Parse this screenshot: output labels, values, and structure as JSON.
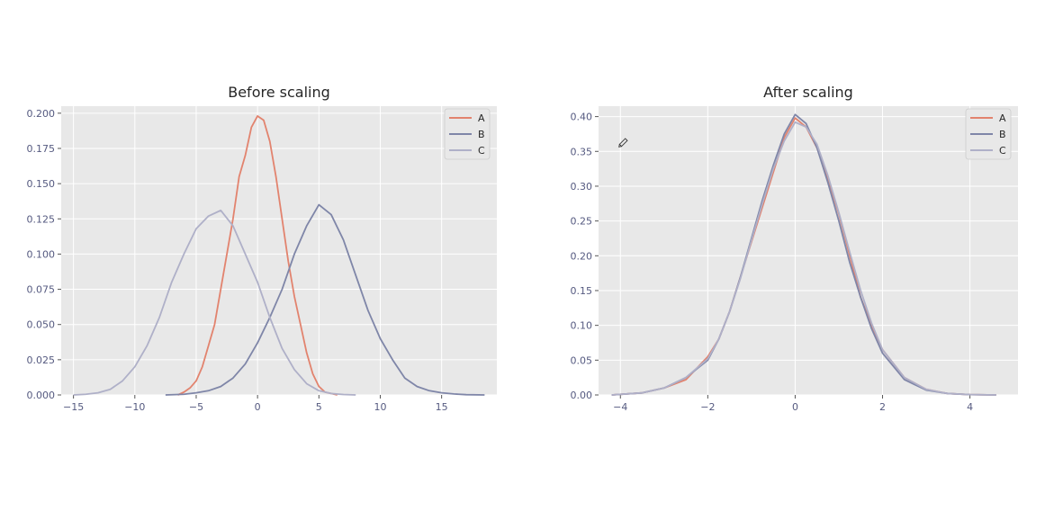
{
  "chart_data": [
    {
      "type": "line",
      "title": "Before scaling",
      "xlabel": "",
      "ylabel": "",
      "xlim": [
        -16,
        19.5
      ],
      "ylim": [
        0,
        0.205
      ],
      "xticks": [
        -15,
        -10,
        -5,
        0,
        5,
        10,
        15,
        20
      ],
      "yticks": [
        0.0,
        0.025,
        0.05,
        0.075,
        0.1,
        0.125,
        0.15,
        0.175,
        0.2
      ],
      "ytick_labels": [
        "0.000",
        "0.025",
        "0.050",
        "0.075",
        "0.100",
        "0.125",
        "0.150",
        "0.175",
        "0.200"
      ],
      "grid": true,
      "legend_position": "top-right",
      "series": [
        {
          "name": "A",
          "color": "#e2836e",
          "x": [
            -6.5,
            -6.0,
            -5.5,
            -5.0,
            -4.5,
            -4.0,
            -3.5,
            -3.0,
            -2.5,
            -2.0,
            -1.5,
            -1.0,
            -0.5,
            0.0,
            0.5,
            1.0,
            1.5,
            2.0,
            2.5,
            3.0,
            3.5,
            4.0,
            4.5,
            5.0,
            5.5,
            6.0,
            6.5
          ],
          "y": [
            0.0,
            0.002,
            0.005,
            0.01,
            0.02,
            0.035,
            0.05,
            0.075,
            0.1,
            0.125,
            0.155,
            0.17,
            0.19,
            0.198,
            0.195,
            0.18,
            0.155,
            0.125,
            0.095,
            0.07,
            0.05,
            0.03,
            0.015,
            0.006,
            0.002,
            0.001,
            0.0
          ]
        },
        {
          "name": "B",
          "color": "#7f86a8",
          "x": [
            -7.5,
            -6.0,
            -5.0,
            -4.0,
            -3.0,
            -2.0,
            -1.0,
            0.0,
            1.0,
            2.0,
            3.0,
            4.0,
            5.0,
            6.0,
            7.0,
            8.0,
            9.0,
            10.0,
            11.0,
            12.0,
            13.0,
            14.0,
            15.0,
            16.0,
            17.0,
            18.5
          ],
          "y": [
            0.0,
            0.0005,
            0.0015,
            0.003,
            0.006,
            0.012,
            0.022,
            0.037,
            0.055,
            0.075,
            0.1,
            0.12,
            0.135,
            0.128,
            0.11,
            0.085,
            0.06,
            0.04,
            0.025,
            0.012,
            0.006,
            0.003,
            0.0015,
            0.0007,
            0.0002,
            0.0
          ]
        },
        {
          "name": "C",
          "color": "#afb0c8",
          "x": [
            -15.0,
            -14.0,
            -13.0,
            -12.0,
            -11.0,
            -10.0,
            -9.0,
            -8.0,
            -7.0,
            -6.0,
            -5.0,
            -4.0,
            -3.0,
            -2.0,
            -1.0,
            0.0,
            1.0,
            2.0,
            3.0,
            4.0,
            5.0,
            6.0,
            7.0,
            8.0
          ],
          "y": [
            0.0,
            0.0005,
            0.0015,
            0.004,
            0.01,
            0.02,
            0.035,
            0.055,
            0.08,
            0.1,
            0.118,
            0.127,
            0.131,
            0.12,
            0.1,
            0.08,
            0.055,
            0.033,
            0.018,
            0.008,
            0.003,
            0.001,
            0.0003,
            0.0
          ]
        }
      ]
    },
    {
      "type": "line",
      "title": "After scaling",
      "xlabel": "",
      "ylabel": "",
      "xlim": [
        -4.5,
        5.1
      ],
      "ylim": [
        0,
        0.415
      ],
      "xticks": [
        -4,
        -2,
        0,
        2,
        4
      ],
      "yticks": [
        0.0,
        0.05,
        0.1,
        0.15,
        0.2,
        0.25,
        0.3,
        0.35,
        0.4
      ],
      "ytick_labels": [
        "0.00",
        "0.05",
        "0.10",
        "0.15",
        "0.20",
        "0.25",
        "0.30",
        "0.35",
        "0.40"
      ],
      "grid": true,
      "legend_position": "top-right",
      "series": [
        {
          "name": "A",
          "color": "#e2836e",
          "x": [
            -4.2,
            -3.5,
            -3.0,
            -2.5,
            -2.0,
            -1.75,
            -1.5,
            -1.25,
            -1.0,
            -0.75,
            -0.5,
            -0.25,
            0.0,
            0.25,
            0.5,
            0.75,
            1.0,
            1.25,
            1.5,
            1.75,
            2.0,
            2.5,
            3.0,
            3.5,
            4.0,
            4.6
          ],
          "y": [
            0.0,
            0.003,
            0.01,
            0.022,
            0.055,
            0.08,
            0.12,
            0.17,
            0.22,
            0.27,
            0.32,
            0.37,
            0.398,
            0.385,
            0.355,
            0.31,
            0.26,
            0.2,
            0.14,
            0.1,
            0.065,
            0.025,
            0.008,
            0.002,
            0.0005,
            0.0
          ]
        },
        {
          "name": "B",
          "color": "#7f86a8",
          "x": [
            -4.2,
            -3.5,
            -3.0,
            -2.5,
            -2.0,
            -1.75,
            -1.5,
            -1.25,
            -1.0,
            -0.75,
            -0.5,
            -0.25,
            0.0,
            0.25,
            0.5,
            0.75,
            1.0,
            1.25,
            1.5,
            1.75,
            2.0,
            2.5,
            3.0,
            3.5,
            4.0,
            4.6
          ],
          "y": [
            0.0,
            0.003,
            0.01,
            0.025,
            0.05,
            0.08,
            0.12,
            0.17,
            0.225,
            0.28,
            0.33,
            0.375,
            0.403,
            0.39,
            0.355,
            0.305,
            0.25,
            0.19,
            0.14,
            0.095,
            0.06,
            0.022,
            0.007,
            0.002,
            0.0005,
            0.0
          ]
        },
        {
          "name": "C",
          "color": "#afb0c8",
          "x": [
            -4.2,
            -3.5,
            -3.0,
            -2.5,
            -2.0,
            -1.75,
            -1.5,
            -1.25,
            -1.0,
            -0.75,
            -0.5,
            -0.25,
            0.0,
            0.25,
            0.5,
            0.75,
            1.0,
            1.25,
            1.5,
            1.75,
            2.0,
            2.5,
            3.0,
            3.5,
            4.0,
            4.6
          ],
          "y": [
            0.0,
            0.003,
            0.01,
            0.025,
            0.052,
            0.08,
            0.12,
            0.168,
            0.222,
            0.275,
            0.325,
            0.365,
            0.392,
            0.385,
            0.36,
            0.315,
            0.262,
            0.205,
            0.15,
            0.103,
            0.065,
            0.025,
            0.008,
            0.002,
            0.0005,
            0.0
          ]
        }
      ]
    }
  ]
}
